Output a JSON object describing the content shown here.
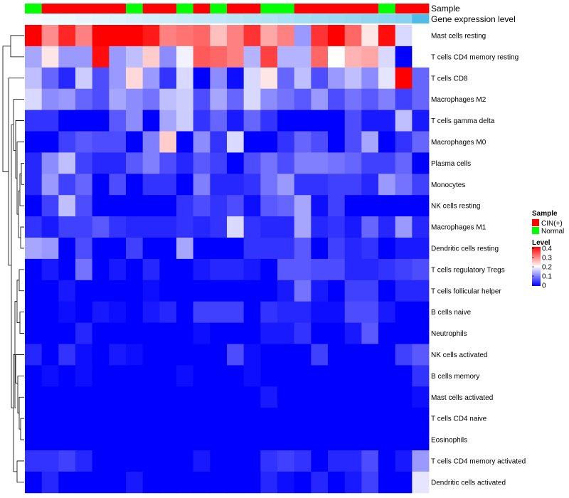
{
  "chart_data": {
    "type": "heatmap",
    "title": "",
    "annotation_names": {
      "sample": "Sample",
      "gene_expression": "Gene expression level"
    },
    "sample_annotation": [
      "Normal",
      "CIN(+)",
      "CIN(+)",
      "CIN(+)",
      "CIN(+)",
      "CIN(+)",
      "Normal",
      "CIN(+)",
      "CIN(+)",
      "Normal",
      "CIN(+)",
      "Normal",
      "CIN(+)",
      "CIN(+)",
      "Normal",
      "Normal",
      "CIN(+)",
      "CIN(+)",
      "CIN(+)",
      "CIN(+)",
      "CIN(+)",
      "Normal",
      "CIN(+)",
      "CIN(+)"
    ],
    "gene_expression_level": [
      0.0,
      0.03,
      0.06,
      0.09,
      0.12,
      0.15,
      0.18,
      0.21,
      0.24,
      0.27,
      0.3,
      0.33,
      0.36,
      0.39,
      0.42,
      0.45,
      0.48,
      0.51,
      0.54,
      0.57,
      0.6,
      0.63,
      0.66,
      1.0
    ],
    "rows": [
      "Mast cells resting",
      "T cells CD4 memory resting",
      "T cells CD8",
      "Macrophages M2",
      "T cells gamma delta",
      "Macrophages M0",
      "Plasma cells",
      "Monocytes",
      "NK cells resting",
      "Macrophages M1",
      "Dendritic cells resting",
      "T cells regulatory  Tregs",
      "T cells follicular helper",
      "B cells naive",
      "Neutrophils",
      "NK cells activated",
      "B cells memory",
      "Mast cells activated",
      "T cells CD4 naive",
      "Eosinophils",
      "T cells CD4 memory activated",
      "Dendritic cells activated"
    ],
    "values": [
      [
        0.4,
        0.29,
        0.37,
        0.3,
        0.4,
        0.4,
        0.4,
        0.38,
        0.3,
        0.31,
        0.32,
        0.25,
        0.3,
        0.36,
        0.27,
        0.3,
        0.12,
        0.36,
        0.4,
        0.32,
        0.22,
        0.39,
        0.17,
        0.2
      ],
      [
        0.13,
        0.22,
        0.12,
        0.12,
        0.39,
        0.12,
        0.15,
        0.24,
        0.11,
        0.19,
        0.33,
        0.32,
        0.3,
        0.14,
        0.35,
        0.14,
        0.14,
        0.32,
        0.2,
        0.26,
        0.27,
        0.17,
        0.0,
        0.2
      ],
      [
        0.15,
        0.08,
        0.03,
        0.16,
        0.06,
        0.12,
        0.23,
        0.12,
        0.04,
        0.17,
        0.0,
        0.11,
        0.01,
        0.17,
        0.22,
        0.08,
        0.15,
        0.06,
        0.12,
        0.15,
        0.11,
        0.18,
        0.4,
        0.08
      ],
      [
        0.17,
        0.11,
        0.12,
        0.08,
        0.06,
        0.13,
        0.11,
        0.09,
        0.15,
        0.16,
        0.06,
        0.13,
        0.08,
        0.17,
        0.11,
        0.09,
        0.07,
        0.12,
        0.06,
        0.09,
        0.07,
        0.1,
        0.05,
        0.08
      ],
      [
        0.04,
        0.04,
        0.0,
        0.0,
        0.0,
        0.07,
        0.11,
        0.0,
        0.13,
        0.16,
        0.04,
        0.08,
        0.02,
        0.08,
        0.04,
        0.0,
        0.0,
        0.0,
        0.0,
        0.06,
        0.02,
        0.02,
        0.15,
        0.02
      ],
      [
        0.0,
        0.0,
        0.05,
        0.07,
        0.06,
        0.06,
        0.0,
        0.1,
        0.24,
        0.0,
        0.11,
        0.04,
        0.17,
        0.0,
        0.0,
        0.04,
        0.08,
        0.06,
        0.0,
        0.06,
        0.13,
        0.0,
        0.04,
        0.08
      ],
      [
        0.03,
        0.11,
        0.15,
        0.05,
        0.03,
        0.03,
        0.07,
        0.1,
        0.06,
        0.03,
        0.07,
        0.05,
        0.0,
        0.06,
        0.09,
        0.06,
        0.1,
        0.1,
        0.09,
        0.08,
        0.05,
        0.05,
        0.08,
        0.0
      ],
      [
        0.03,
        0.12,
        0.05,
        0.08,
        0.0,
        0.06,
        0.0,
        0.04,
        0.04,
        0.0,
        0.1,
        0.03,
        0.03,
        0.04,
        0.09,
        0.12,
        0.04,
        0.04,
        0.05,
        0.05,
        0.03,
        0.12,
        0.09,
        0.05
      ],
      [
        0.0,
        0.05,
        0.15,
        0.06,
        0.0,
        0.0,
        0.0,
        0.0,
        0.0,
        0.04,
        0.06,
        0.04,
        0.06,
        0.01,
        0.07,
        0.08,
        0.13,
        0.01,
        0.05,
        0.0,
        0.0,
        0.0,
        0.0,
        0.0
      ],
      [
        0.04,
        0.02,
        0.05,
        0.05,
        0.07,
        0.04,
        0.03,
        0.03,
        0.03,
        0.04,
        0.03,
        0.04,
        0.17,
        0.04,
        0.03,
        0.03,
        0.13,
        0.03,
        0.04,
        0.02,
        0.08,
        0.03,
        0.12,
        0.03
      ],
      [
        0.13,
        0.12,
        0.0,
        0.06,
        0.0,
        0.0,
        0.05,
        0.0,
        0.0,
        0.13,
        0.0,
        0.0,
        0.0,
        0.04,
        0.04,
        0.04,
        0.07,
        0.0,
        0.05,
        0.03,
        0.04,
        0.0,
        0.02,
        0.02
      ],
      [
        0.0,
        0.02,
        0.0,
        0.09,
        0.0,
        0.02,
        0.0,
        0.03,
        0.0,
        0.0,
        0.02,
        0.03,
        0.03,
        0.02,
        0.0,
        0.07,
        0.07,
        0.06,
        0.06,
        0.03,
        0.03,
        0.04,
        0.05,
        0.06
      ],
      [
        0.0,
        0.0,
        0.02,
        0.0,
        0.0,
        0.0,
        0.0,
        0.01,
        0.0,
        0.0,
        0.0,
        0.0,
        0.0,
        0.0,
        0.0,
        0.02,
        0.09,
        0.02,
        0.0,
        0.05,
        0.05,
        0.0,
        0.03,
        0.03
      ],
      [
        0.0,
        0.0,
        0.01,
        0.0,
        0.02,
        0.01,
        0.0,
        0.02,
        0.03,
        0.0,
        0.05,
        0.05,
        0.05,
        0.0,
        0.04,
        0.03,
        0.03,
        0.01,
        0.01,
        0.06,
        0.06,
        0.02,
        0.0,
        0.0
      ],
      [
        0.0,
        0.0,
        0.0,
        0.03,
        0.0,
        0.0,
        0.0,
        0.0,
        0.0,
        0.0,
        0.01,
        0.0,
        0.0,
        0.0,
        0.02,
        0.02,
        0.04,
        0.0,
        0.0,
        0.02,
        0.07,
        0.0,
        0.0,
        0.0
      ],
      [
        0.03,
        0.0,
        0.04,
        0.01,
        0.0,
        0.02,
        0.01,
        0.0,
        0.0,
        0.0,
        0.0,
        0.0,
        0.06,
        0.01,
        0.0,
        0.0,
        0.0,
        0.05,
        0.0,
        0.0,
        0.0,
        0.0,
        0.05,
        0.07
      ],
      [
        0.0,
        0.01,
        0.0,
        0.01,
        0.0,
        0.0,
        0.0,
        0.0,
        0.0,
        0.01,
        0.0,
        0.0,
        0.0,
        0.01,
        0.0,
        0.0,
        0.0,
        0.0,
        0.0,
        0.0,
        0.0,
        0.0,
        0.0,
        0.04
      ],
      [
        0.0,
        0.0,
        0.0,
        0.0,
        0.0,
        0.0,
        0.0,
        0.0,
        0.0,
        0.0,
        0.0,
        0.0,
        0.0,
        0.0,
        0.02,
        0.0,
        0.0,
        0.0,
        0.0,
        0.0,
        0.0,
        0.0,
        0.0,
        0.01
      ],
      [
        0.0,
        0.0,
        0.0,
        0.0,
        0.0,
        0.0,
        0.0,
        0.0,
        0.0,
        0.0,
        0.0,
        0.0,
        0.0,
        0.0,
        0.0,
        0.0,
        0.0,
        0.0,
        0.0,
        0.0,
        0.0,
        0.0,
        0.0,
        0.0
      ],
      [
        0.0,
        0.0,
        0.0,
        0.0,
        0.0,
        0.0,
        0.0,
        0.0,
        0.0,
        0.0,
        0.0,
        0.0,
        0.0,
        0.0,
        0.0,
        0.0,
        0.0,
        0.0,
        0.0,
        0.0,
        0.0,
        0.0,
        0.0,
        0.0
      ],
      [
        0.04,
        0.04,
        0.05,
        0.03,
        0.0,
        0.0,
        0.0,
        0.0,
        0.0,
        0.0,
        0.02,
        0.0,
        0.0,
        0.0,
        0.04,
        0.05,
        0.04,
        0.0,
        0.03,
        0.03,
        0.06,
        0.0,
        0.02,
        0.12
      ],
      [
        0.0,
        0.03,
        0.0,
        0.0,
        0.0,
        0.0,
        0.02,
        0.0,
        0.0,
        0.0,
        0.0,
        0.0,
        0.0,
        0.0,
        0.03,
        0.01,
        0.0,
        0.03,
        0.0,
        0.02,
        0.05,
        0.0,
        0.0,
        0.18
      ]
    ],
    "color_scale": {
      "low": "#0000ff",
      "mid": "#ffffff",
      "high": "#ff0000",
      "min": 0,
      "mid_value": 0.2,
      "max": 0.4
    },
    "legends": {
      "sample": {
        "title": "Sample",
        "entries": [
          {
            "label": "CIN(+)",
            "color": "#ff0000"
          },
          {
            "label": "Normal",
            "color": "#00ff00"
          }
        ]
      },
      "level": {
        "title": "Level",
        "ticks": [
          0.4,
          0.3,
          0.2,
          0.1,
          0
        ]
      }
    },
    "annotation_colors": {
      "CIN(+)": "#ff0000",
      "Normal": "#00ff00",
      "gene_low": "#f7fbff",
      "gene_high": "#4dbde8"
    },
    "row_dendrogram": "left",
    "legend_placement": "right"
  }
}
